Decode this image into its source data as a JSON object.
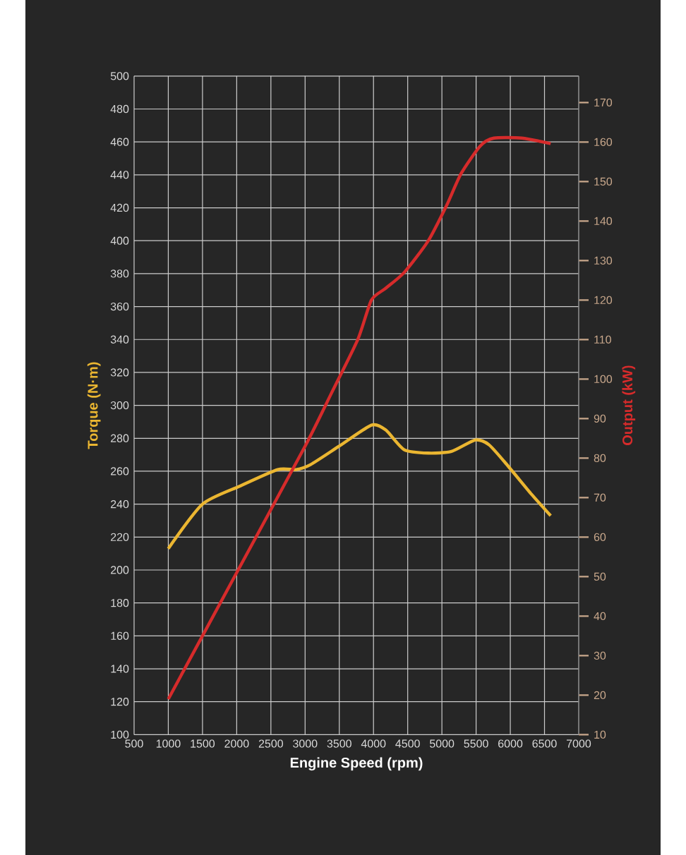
{
  "chart_data": {
    "type": "line",
    "xlabel": "Engine Speed (rpm)",
    "ylabel": "Torque (N·m)",
    "y2label": "Output (kW)",
    "xlim": [
      500,
      7000
    ],
    "xticks": [
      500,
      1000,
      1500,
      2000,
      2500,
      3000,
      3500,
      4000,
      4500,
      5000,
      5500,
      6000,
      6500,
      7000
    ],
    "ylim": [
      100,
      500
    ],
    "yticks": [
      100,
      120,
      140,
      160,
      180,
      200,
      220,
      240,
      260,
      280,
      300,
      320,
      340,
      360,
      380,
      400,
      420,
      440,
      460,
      480,
      500
    ],
    "y2lim": [
      10,
      176.7
    ],
    "y2ticks": [
      10,
      20,
      30,
      40,
      50,
      60,
      70,
      80,
      90,
      100,
      110,
      120,
      130,
      140,
      150,
      160,
      170
    ],
    "grid": true,
    "series": [
      {
        "color": "#EBB631",
        "x": [
          1000,
          1500,
          2050,
          2600,
          2870,
          3080,
          3490,
          3970,
          4180,
          4450,
          4800,
          5140,
          5490,
          5690,
          5970,
          6310,
          6590
        ],
        "values": [
          213,
          240,
          251,
          261,
          261,
          264,
          275,
          288,
          285,
          273,
          271,
          272,
          279,
          276,
          263,
          246,
          233
        ]
      },
      {
        "color": "#D62B2B",
        "axis": "y2",
        "x": [
          1000,
          2000,
          3000,
          3390,
          3770,
          3970,
          4180,
          4450,
          4800,
          5070,
          5280,
          5560,
          5760,
          6170,
          6590
        ],
        "values": [
          19,
          51,
          83,
          96.6,
          110,
          120,
          123,
          127,
          135,
          144,
          152,
          159,
          161,
          161,
          159.6
        ]
      }
    ]
  }
}
